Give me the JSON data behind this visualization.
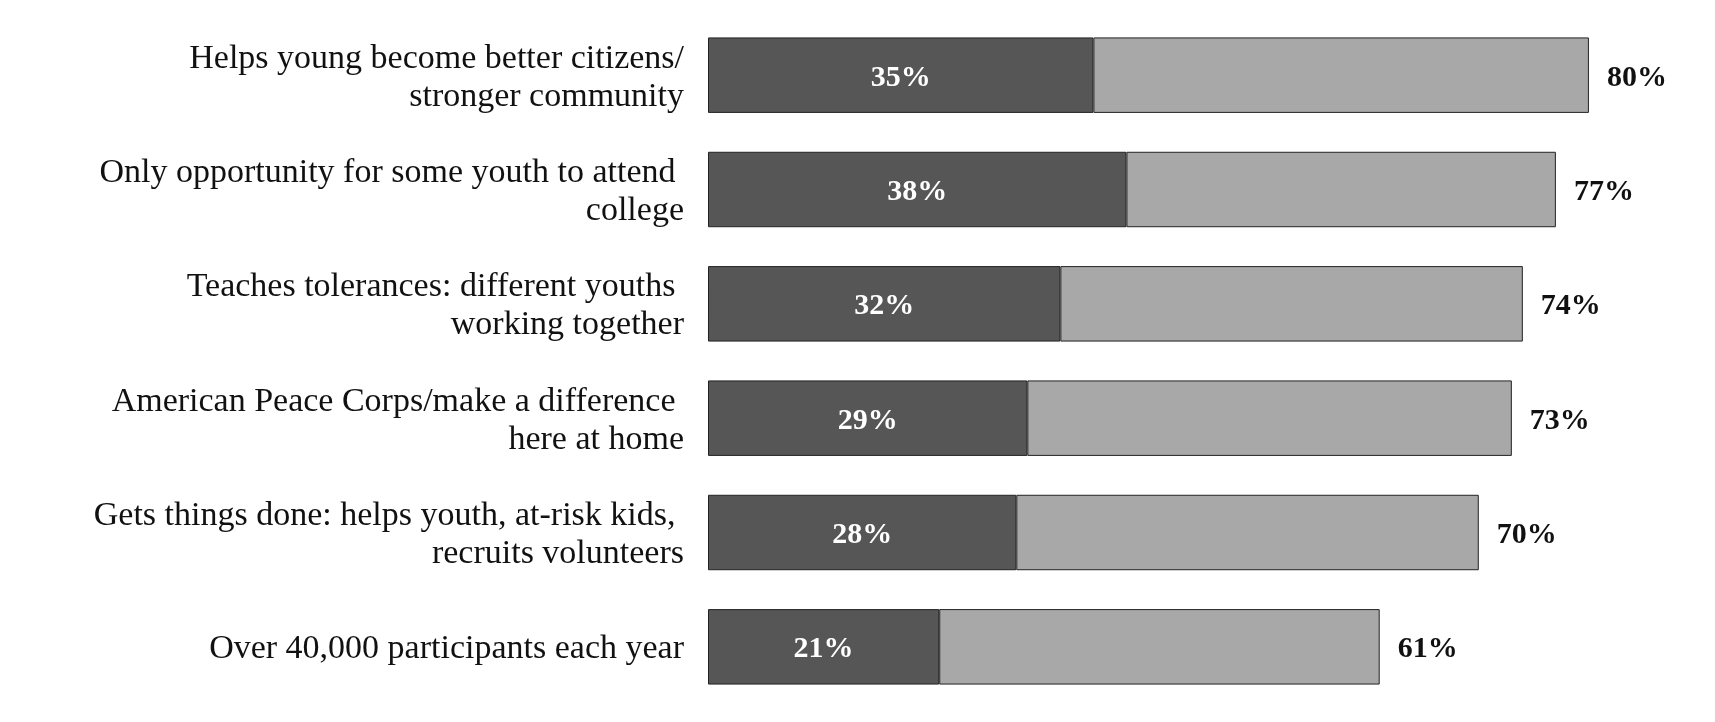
{
  "chart_data": {
    "type": "bar",
    "orientation": "horizontal",
    "stacked": true,
    "categories": [
      "Helps young become better citizens/stronger community",
      "Only opportunity for some youth to attend college",
      "Teaches tolerances: different youths working together",
      "American Peace Corps/make a difference here at home",
      "Gets things done: helps youth, at-risk kids, recruits volunteers",
      "Over 40,000 participants each year"
    ],
    "series": [
      {
        "color": "#565656",
        "values": [
          35,
          38,
          32,
          29,
          28,
          21
        ],
        "value_labels": [
          "35%",
          "38%",
          "32%",
          "29%",
          "28%",
          "21%"
        ]
      },
      {
        "color": "#a8a8a8",
        "values": [
          45,
          39,
          42,
          44,
          42,
          40
        ]
      }
    ],
    "totals": [
      "80%",
      "77%",
      "74%",
      "73%",
      "70%",
      "61%"
    ]
  }
}
